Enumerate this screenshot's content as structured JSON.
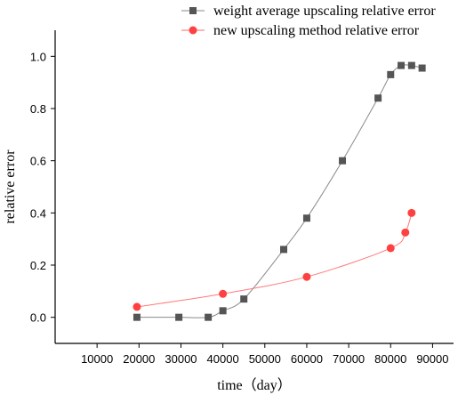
{
  "chart_data": {
    "type": "line",
    "title": "",
    "xlabel": "time（day）",
    "ylabel": "relative  error",
    "xlim": [
      0,
      95000
    ],
    "ylim": [
      -0.1,
      1.1
    ],
    "xticks": [
      10000,
      20000,
      30000,
      40000,
      50000,
      60000,
      70000,
      80000,
      90000
    ],
    "yticks": [
      0.0,
      0.2,
      0.4,
      0.6,
      0.8,
      1.0
    ],
    "ytick_labels": [
      "0.0",
      "0.2",
      "0.4",
      "0.6",
      "0.8",
      "1.0"
    ],
    "grid": false,
    "legend_position": "top-right",
    "series": [
      {
        "name": "weight average upscaling relative error",
        "color": "#555555",
        "marker": "square",
        "x": [
          19500,
          29500,
          36500,
          40000,
          45000,
          54500,
          60000,
          68500,
          77000,
          80000,
          82500,
          85000,
          87500
        ],
        "y": [
          0.0,
          0.0,
          0.0,
          0.025,
          0.07,
          0.26,
          0.38,
          0.6,
          0.84,
          0.93,
          0.965,
          0.965,
          0.955
        ]
      },
      {
        "name": "new upscaling method relative error",
        "color": "#ff4040",
        "marker": "circle",
        "x": [
          19500,
          40000,
          60000,
          80000,
          83500,
          85000
        ],
        "y": [
          0.04,
          0.09,
          0.155,
          0.265,
          0.325,
          0.4
        ]
      }
    ]
  }
}
